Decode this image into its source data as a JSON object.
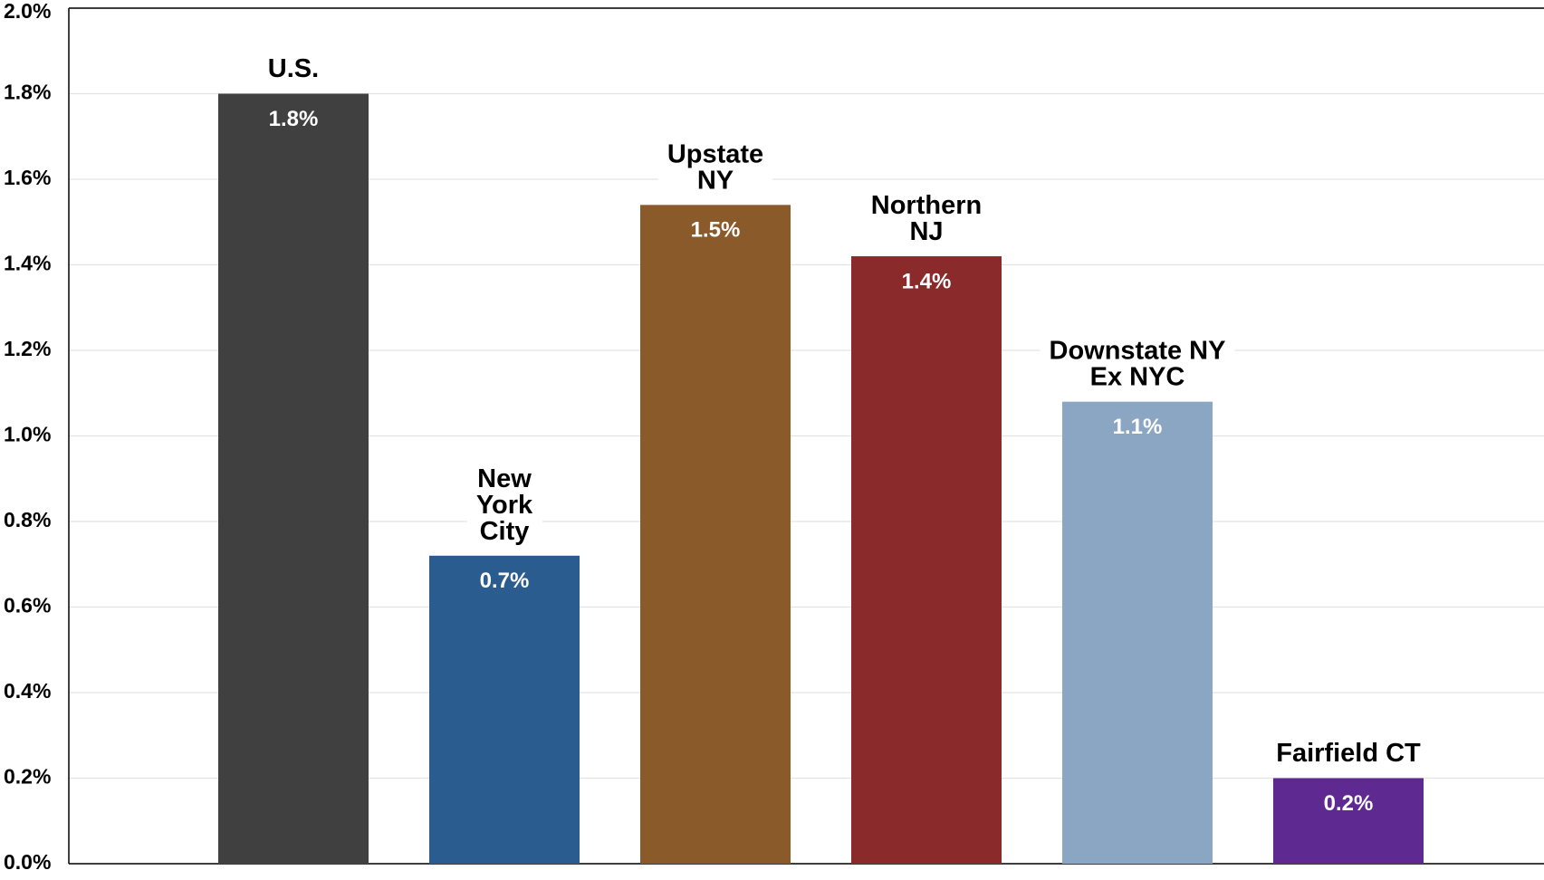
{
  "chart_data": {
    "type": "bar",
    "categories": [
      "U.S.",
      "New\nYork\nCity",
      "Upstate\nNY",
      "Northern\nNJ",
      "Downstate NY\nEx NYC",
      "Fairfield CT"
    ],
    "values": [
      1.8,
      0.72,
      1.54,
      1.42,
      1.08,
      0.2
    ],
    "value_labels": [
      "1.8%",
      "0.7%",
      "1.5%",
      "1.4%",
      "1.1%",
      "0.2%"
    ],
    "colors": [
      "#404040",
      "#2b5c8f",
      "#8b5a2b",
      "#8b2a2a",
      "#8aa6c3",
      "#5e2a91"
    ],
    "ylim": [
      0,
      2.0
    ],
    "yticks": [
      {
        "value": 0,
        "label": "0.0%"
      },
      {
        "value": 0.2,
        "label": "0.2%"
      },
      {
        "value": 0.4,
        "label": "0.4%"
      },
      {
        "value": 0.6,
        "label": "0.6%"
      },
      {
        "value": 0.8,
        "label": "0.8%"
      },
      {
        "value": 1.0,
        "label": "1.0%"
      },
      {
        "value": 1.2,
        "label": "1.2%"
      },
      {
        "value": 1.4,
        "label": "1.4%"
      },
      {
        "value": 1.6,
        "label": "1.6%"
      },
      {
        "value": 1.8,
        "label": "1.8%"
      },
      {
        "value": 2.0,
        "label": "2.0%"
      }
    ],
    "grid": true
  }
}
